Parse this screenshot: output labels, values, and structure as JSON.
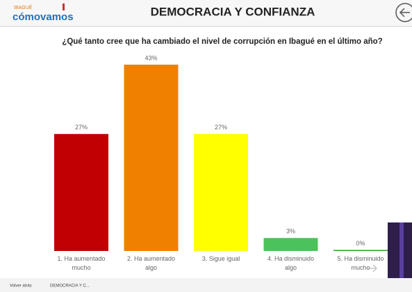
{
  "header": {
    "logo_top": "IBAGUÉ",
    "logo": "cómovamos"
  },
  "chart_data": {
    "type": "bar",
    "title": "DEMOCRACIA Y CONFIANZA",
    "subtitle": "¿Qué tanto cree que ha cambiado el nivel de corrupción en Ibagué en el último año?",
    "categories": [
      "1. Ha aumentado mucho",
      "2. Ha aumentado algo",
      "3. Sigue igual",
      "4. Ha disminuido algo",
      "5. Ha disminuido mucho"
    ],
    "values": [
      27,
      43,
      27,
      3,
      0
    ],
    "value_labels": [
      "27%",
      "43%",
      "27%",
      "3%",
      "0%"
    ],
    "colors": [
      "#c00000",
      "#f08000",
      "#ffff00",
      "#4cc35a",
      "#2ca02c"
    ]
  },
  "footer": {
    "back": "Volver atrás",
    "tab": "DEMOCRACIA Y C..."
  }
}
